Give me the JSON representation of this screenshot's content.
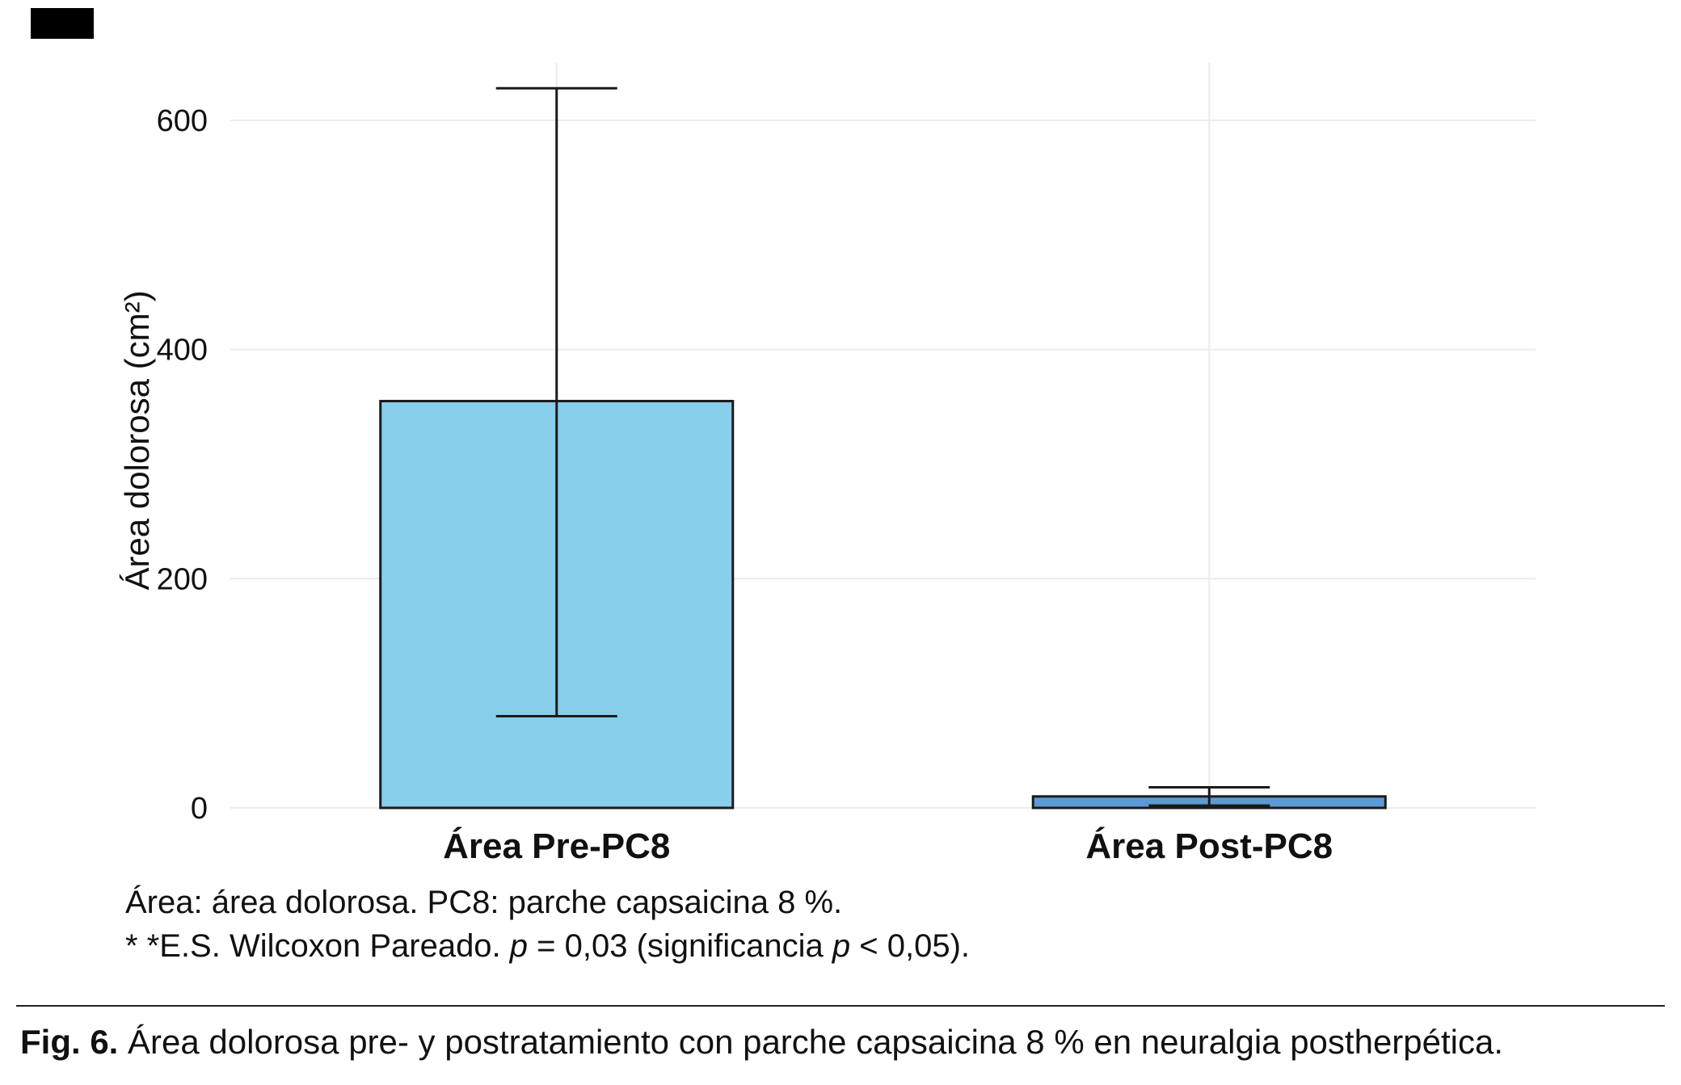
{
  "figure": {
    "notes": {
      "line1": "Área: área dolorosa. PC8: parche capsaicina 8 %.",
      "line2": {
        "pre": "* *E.S. Wilcoxon Pareado. ",
        "p1": "p",
        "mid": " = 0,03 (significancia ",
        "p2": "p",
        "end": " < 0,05)."
      }
    },
    "caption": {
      "label": "Fig. 6.",
      "text": " Área dolorosa pre- y postratamiento con parche capsaicina 8 % en neuralgia postherpética."
    }
  },
  "chart_data": {
    "type": "bar",
    "title": "",
    "xlabel": "",
    "ylabel": "Área dolorosa (cm²)",
    "categories": [
      "Área Pre-PC8",
      "Área Post-PC8"
    ],
    "values": [
      355,
      10
    ],
    "error_bars": [
      {
        "low": 80,
        "high": 628
      },
      {
        "low": 2,
        "high": 18
      }
    ],
    "bar_colors": [
      "#87CEEB",
      "#5B9BD5"
    ],
    "bar_stroke": "#1a1a1a",
    "yticks": [
      0,
      200,
      400,
      600
    ],
    "ylim": [
      0,
      650
    ],
    "grid": true,
    "gridline_color": "#ececec",
    "legend": "none"
  }
}
